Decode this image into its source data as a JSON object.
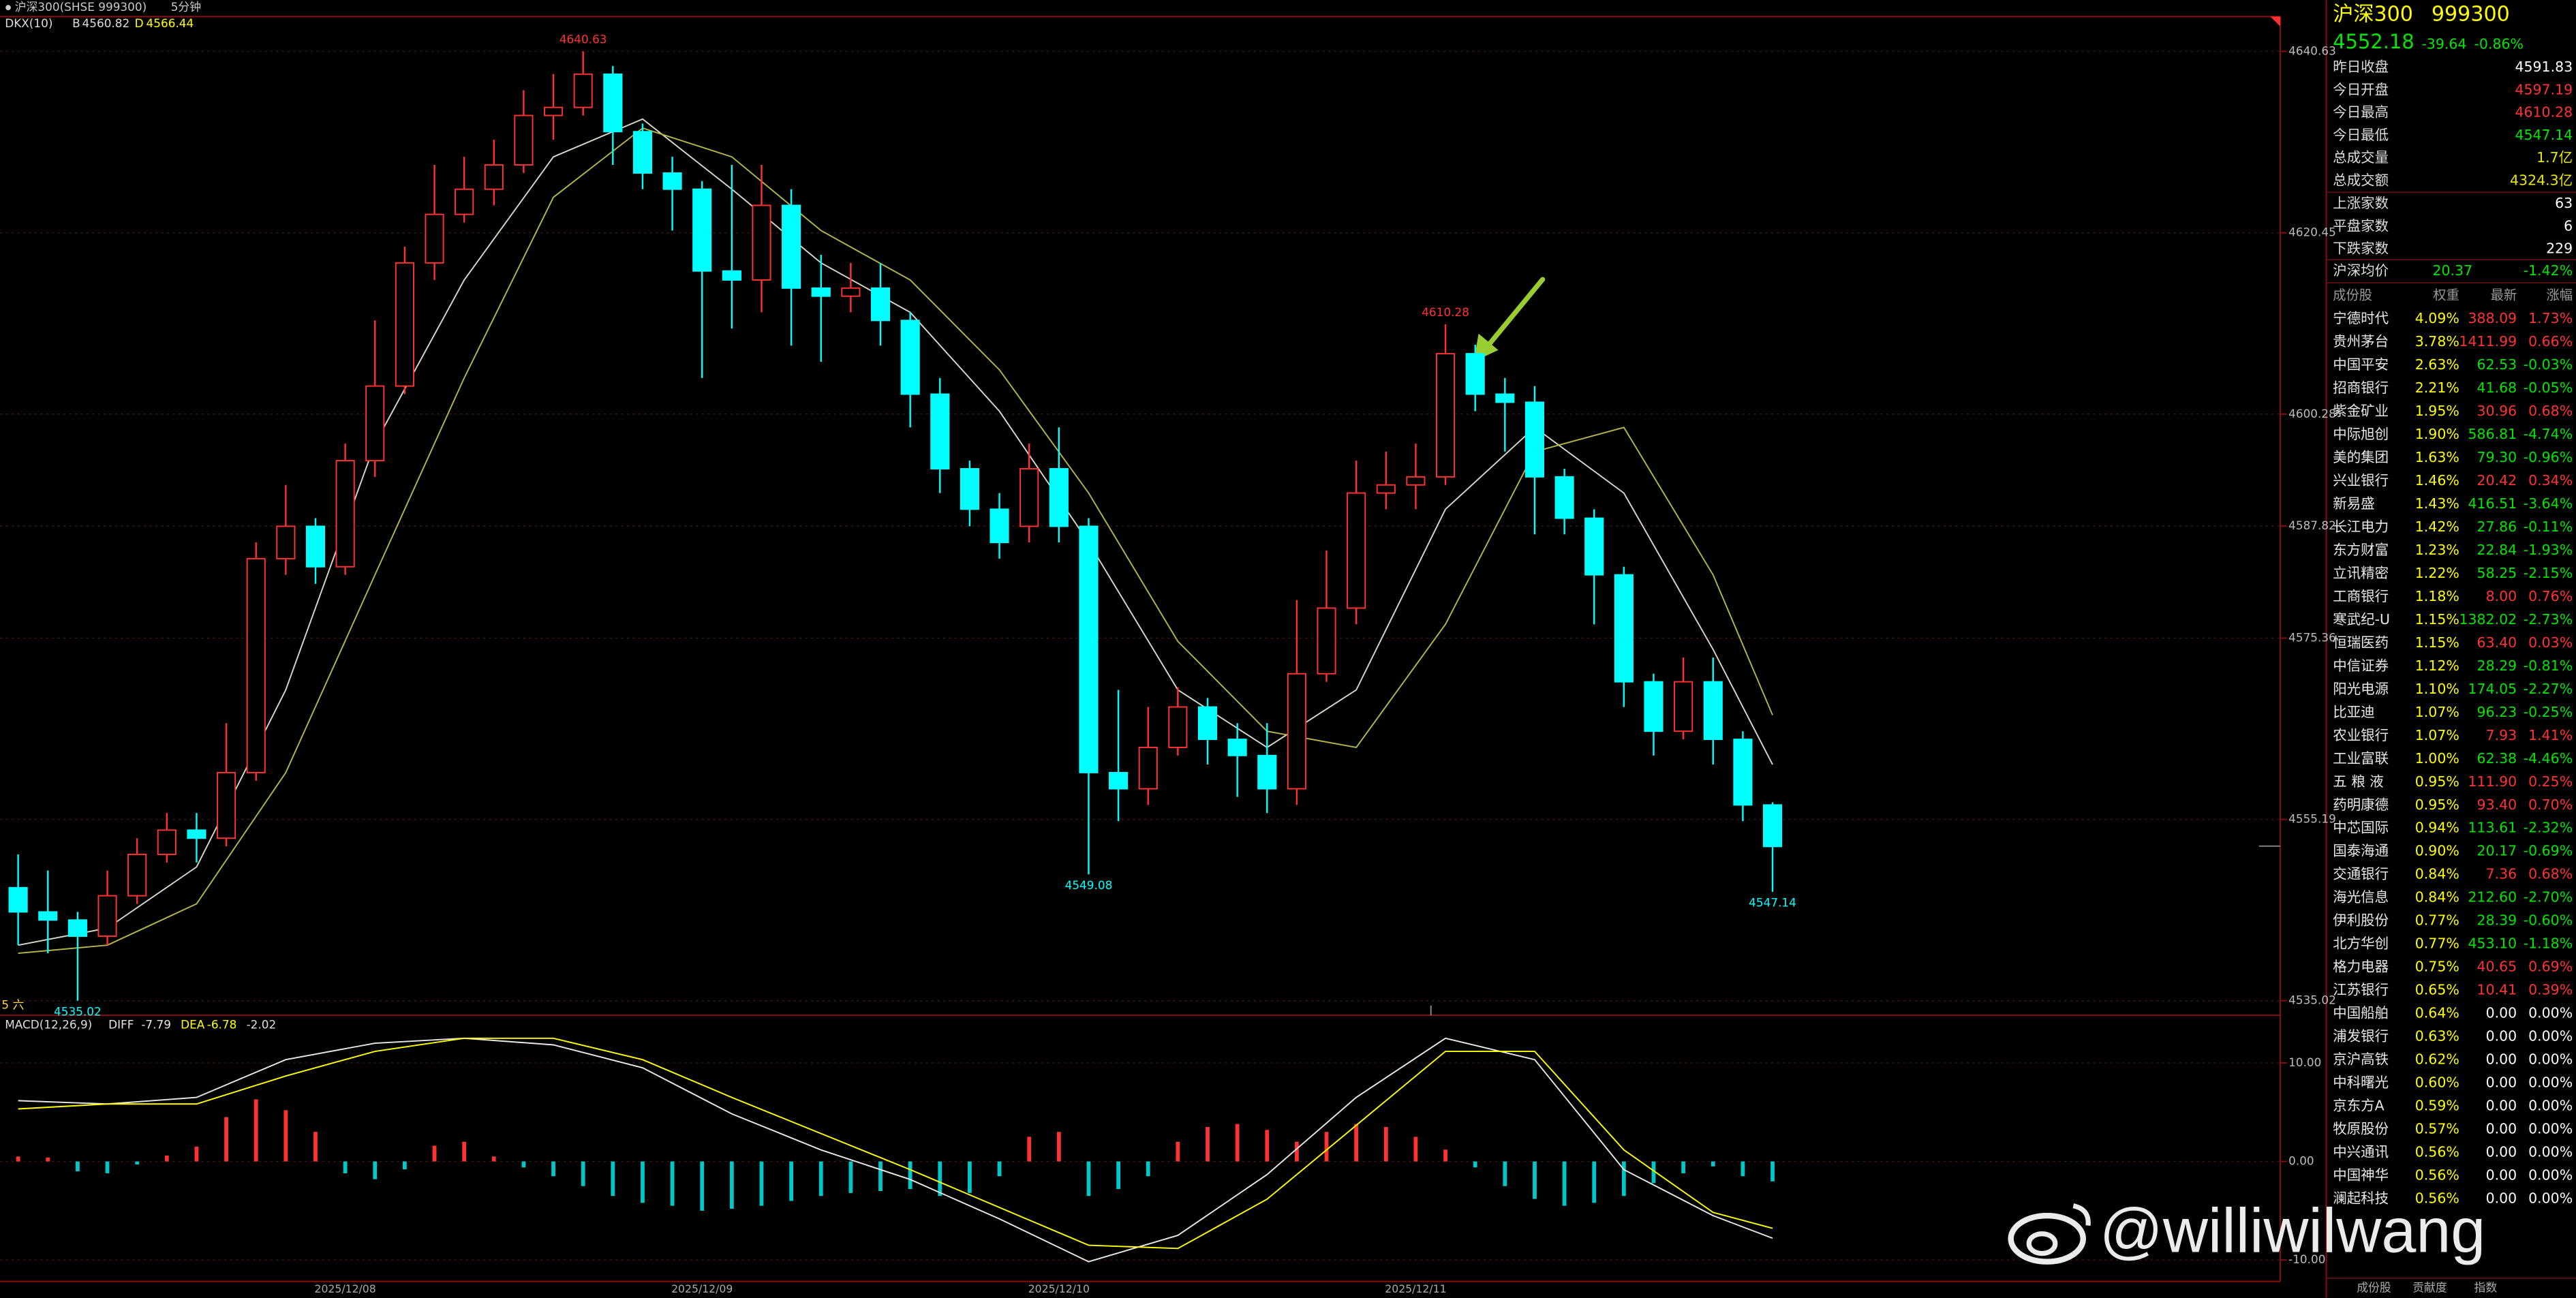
{
  "header": {
    "instrument": "沪深300(SHSE 999300)",
    "period": "5分钟",
    "indicator": "DKX(10)",
    "b_label": "B",
    "b": 4560.82,
    "d_label": "D",
    "d": 4566.44
  },
  "chart_data": [
    {
      "type": "candlestick",
      "corner_label": "5 六",
      "ylim": [
        4533.4,
        4644.5
      ],
      "yticks": [
        4640.63,
        4620.45,
        4600.28,
        4587.82,
        4575.36,
        4555.19,
        4535.02
      ],
      "grid": true,
      "up_color": "#ff3232",
      "down_color": "#00ffff",
      "candles": [
        [
          4547.6,
          4551.3,
          4541.2,
          4544.9
        ],
        [
          4544.9,
          4549.5,
          4540.3,
          4544.0
        ],
        [
          4544.0,
          4544.9,
          4535.02,
          4542.2
        ],
        [
          4542.2,
          4549.5,
          4541.2,
          4546.7
        ],
        [
          4546.7,
          4553.1,
          4545.8,
          4551.3
        ],
        [
          4551.3,
          4555.9,
          4550.4,
          4554.0
        ],
        [
          4554.0,
          4555.9,
          4550.4,
          4553.1
        ],
        [
          4553.1,
          4565.9,
          4552.2,
          4560.4
        ],
        [
          4560.4,
          4586.0,
          4559.5,
          4584.2
        ],
        [
          4584.2,
          4592.4,
          4582.4,
          4587.8
        ],
        [
          4587.8,
          4588.7,
          4581.4,
          4583.3
        ],
        [
          4583.3,
          4597.0,
          4582.4,
          4595.1
        ],
        [
          4595.1,
          4610.7,
          4593.3,
          4603.4
        ],
        [
          4603.4,
          4618.9,
          4602.5,
          4617.1
        ],
        [
          4617.1,
          4628.0,
          4615.2,
          4622.5
        ],
        [
          4622.5,
          4628.9,
          4621.6,
          4625.3
        ],
        [
          4625.3,
          4630.8,
          4623.5,
          4628.0
        ],
        [
          4628.0,
          4636.3,
          4627.1,
          4633.5
        ],
        [
          4633.5,
          4638.1,
          4630.8,
          4634.4
        ],
        [
          4634.4,
          4640.63,
          4633.5,
          4638.1
        ],
        [
          4638.1,
          4639.0,
          4628.0,
          4631.7
        ],
        [
          4631.7,
          4632.6,
          4625.3,
          4627.1
        ],
        [
          4627.1,
          4628.9,
          4620.7,
          4625.3
        ],
        [
          4625.3,
          4626.2,
          4604.3,
          4616.2
        ],
        [
          4616.2,
          4628.0,
          4609.8,
          4615.2
        ],
        [
          4615.2,
          4628.0,
          4611.6,
          4623.5
        ],
        [
          4623.5,
          4625.3,
          4607.9,
          4614.3
        ],
        [
          4614.3,
          4618.0,
          4606.1,
          4613.4
        ],
        [
          4613.4,
          4617.1,
          4611.6,
          4614.3
        ],
        [
          4614.3,
          4617.1,
          4607.9,
          4610.7
        ],
        [
          4610.7,
          4611.6,
          4598.8,
          4602.5
        ],
        [
          4602.5,
          4604.3,
          4591.5,
          4594.2
        ],
        [
          4594.2,
          4595.1,
          4587.8,
          4589.7
        ],
        [
          4589.7,
          4591.5,
          4584.2,
          4586.0
        ],
        [
          4587.8,
          4597.0,
          4586.0,
          4594.2
        ],
        [
          4594.2,
          4598.8,
          4586.0,
          4587.8
        ],
        [
          4587.8,
          4588.7,
          4549.08,
          4560.4
        ],
        [
          4560.4,
          4569.6,
          4555.0,
          4558.6
        ],
        [
          4558.6,
          4567.7,
          4556.8,
          4563.2
        ],
        [
          4563.2,
          4569.9,
          4562.3,
          4567.7
        ],
        [
          4567.7,
          4568.7,
          4561.3,
          4564.1
        ],
        [
          4564.1,
          4565.9,
          4557.7,
          4562.3
        ],
        [
          4562.3,
          4565.9,
          4555.9,
          4558.6
        ],
        [
          4558.6,
          4579.6,
          4556.8,
          4571.4
        ],
        [
          4571.4,
          4585.1,
          4570.5,
          4578.7
        ],
        [
          4578.7,
          4595.1,
          4576.9,
          4591.5
        ],
        [
          4591.5,
          4596.1,
          4589.7,
          4592.4
        ],
        [
          4592.4,
          4597.0,
          4589.7,
          4593.3
        ],
        [
          4593.3,
          4610.28,
          4592.4,
          4607.0
        ],
        [
          4607.0,
          4608.0,
          4600.6,
          4602.5
        ],
        [
          4602.5,
          4604.3,
          4596.1,
          4601.6
        ],
        [
          4601.6,
          4603.4,
          4586.9,
          4593.3
        ],
        [
          4593.3,
          4594.2,
          4586.9,
          4588.7
        ],
        [
          4588.7,
          4589.7,
          4576.9,
          4582.4
        ],
        [
          4582.4,
          4583.3,
          4567.7,
          4570.5
        ],
        [
          4570.5,
          4571.4,
          4562.3,
          4565.0
        ],
        [
          4565.0,
          4573.2,
          4564.1,
          4570.5
        ],
        [
          4570.5,
          4573.2,
          4561.3,
          4564.1
        ],
        [
          4564.1,
          4565.0,
          4555.0,
          4556.8
        ],
        [
          4556.8,
          4557.1,
          4547.14,
          4552.18
        ]
      ],
      "lines": [
        {
          "color": "#d8d8c8",
          "x": [
            0,
            3,
            6,
            9,
            12,
            15,
            18,
            21,
            24,
            27,
            30,
            33,
            36,
            39,
            42,
            45,
            48,
            51,
            54,
            57,
            59
          ],
          "values": [
            4541.2,
            4543.1,
            4549.9,
            4569.6,
            4597.0,
            4615.2,
            4628.9,
            4633.1,
            4625.3,
            4617.1,
            4611.6,
            4600.6,
            4586.0,
            4569.6,
            4563.2,
            4569.6,
            4589.7,
            4598.8,
            4591.5,
            4574.1,
            4561.3
          ]
        },
        {
          "color": "#b5b54a",
          "x": [
            0,
            3,
            6,
            9,
            12,
            15,
            18,
            21,
            24,
            27,
            30,
            33,
            36,
            39,
            42,
            45,
            48,
            51,
            54,
            57,
            59
          ],
          "values": [
            4540.3,
            4541.2,
            4545.8,
            4560.4,
            4582.4,
            4604.3,
            4624.4,
            4632.1,
            4628.9,
            4620.7,
            4615.2,
            4605.2,
            4591.5,
            4575.0,
            4565.0,
            4563.2,
            4576.9,
            4596.1,
            4598.8,
            4582.4,
            4566.8
          ]
        }
      ],
      "annotations": [
        4640.63,
        4610.28,
        4549.08,
        4547.14,
        4535.02
      ]
    },
    {
      "type": "macd",
      "title": "MACD(12,26,9)",
      "ylim": [
        -12.17,
        14.83
      ],
      "yticks": [
        {
          "value": 10,
          "label": "10.00"
        },
        {
          "value": 0,
          "label": "0.00"
        },
        {
          "value": -10,
          "label": "-10.00"
        }
      ],
      "categories": [
        null,
        null,
        null,
        null,
        null,
        null,
        null,
        null,
        null,
        null,
        null,
        "2025/12/08",
        null,
        null,
        null,
        null,
        null,
        null,
        null,
        null,
        null,
        null,
        null,
        "2025/12/09",
        null,
        null,
        null,
        null,
        null,
        null,
        null,
        null,
        null,
        null,
        null,
        "2025/12/10",
        null,
        null,
        null,
        null,
        null,
        null,
        null,
        null,
        null,
        null,
        null,
        "2025/12/11",
        null,
        null,
        null,
        null,
        null,
        null,
        null,
        null,
        null,
        null,
        null,
        null
      ],
      "x": [
        0,
        3,
        6,
        9,
        12,
        15,
        18,
        21,
        24,
        27,
        30,
        33,
        36,
        39,
        42,
        45,
        48,
        51,
        54,
        57,
        59
      ],
      "series": [
        {
          "name": "DIFF",
          "color": "#e8e8e8",
          "values": [
            6.17,
            5.83,
            6.5,
            10.33,
            12.0,
            12.5,
            11.83,
            9.5,
            4.83,
            1.17,
            -1.83,
            -5.83,
            -10.17,
            -7.5,
            -1.33,
            6.5,
            12.5,
            10.33,
            -0.83,
            -5.5,
            -7.79
          ]
        },
        {
          "name": "DEA",
          "color": "#ffff00",
          "values": [
            5.33,
            5.83,
            5.83,
            8.67,
            11.17,
            12.5,
            12.5,
            10.33,
            6.5,
            2.83,
            -0.83,
            -4.67,
            -8.5,
            -8.83,
            -3.83,
            3.67,
            11.17,
            11.17,
            1.17,
            -5.17,
            -6.78
          ]
        }
      ],
      "histogram": {
        "up_color": "#ff3232",
        "down_color": "#00c8c8",
        "values": [
          0.5,
          0.4,
          -1.0,
          -1.2,
          -0.3,
          0.6,
          1.5,
          4.5,
          6.3,
          5.2,
          3.0,
          -1.2,
          -1.8,
          -0.8,
          1.6,
          2.0,
          0.5,
          -0.6,
          -1.5,
          -2.5,
          -3.5,
          -4.2,
          -4.5,
          -5.0,
          -4.8,
          -4.5,
          -4.0,
          -3.5,
          -3.2,
          -3.0,
          -2.8,
          -3.5,
          -3.2,
          -1.5,
          2.5,
          3.0,
          -3.5,
          -2.8,
          -1.5,
          2.0,
          3.5,
          3.8,
          3.2,
          2.0,
          3.0,
          3.8,
          3.5,
          2.5,
          1.2,
          -0.6,
          -2.5,
          -3.8,
          -4.5,
          -4.2,
          -3.5,
          -2.2,
          -1.2,
          -0.5,
          -1.5,
          -2.02
        ]
      }
    }
  ],
  "quote": {
    "name": "沪深300",
    "code": "999300",
    "price": 4552.18,
    "change": -39.64,
    "change_pct": "-0.86%"
  },
  "stats": [
    {
      "label": "昨日收盘",
      "value": 4591.83,
      "color": "#ffffff"
    },
    {
      "label": "今日开盘",
      "value": 4597.19,
      "color": "#ff3232"
    },
    {
      "label": "今日最高",
      "value": 4610.28,
      "color": "#ff3232"
    },
    {
      "label": "今日最低",
      "value": 4547.14,
      "color": "#00e600"
    },
    {
      "label": "总成交量",
      "value": "1.7亿",
      "color": "#e6e600"
    },
    {
      "label": "总成交额",
      "value": "4324.3亿",
      "color": "#e6e600"
    }
  ],
  "breadth": [
    {
      "label": "上涨家数",
      "value": 63,
      "color": "#ffffff"
    },
    {
      "label": "平盘家数",
      "value": 6,
      "color": "#ffffff"
    },
    {
      "label": "下跌家数",
      "value": 229,
      "color": "#ffffff"
    }
  ],
  "average": {
    "label": "沪深均价",
    "value": 20.37,
    "change": "-1.42%",
    "color": "#00e600"
  },
  "constituents": {
    "up_color": "#ff3232",
    "down_color": "#00e600",
    "flat_color": "#ffffff",
    "weight_color": "#ffff00",
    "headers": [
      "成份股",
      "权重",
      "最新",
      "涨幅"
    ],
    "rows": [
      [
        "宁德时代",
        "4.09%",
        "388.09",
        "1.73%"
      ],
      [
        "贵州茅台",
        "3.78%",
        "1411.99",
        "0.66%"
      ],
      [
        "中国平安",
        "2.63%",
        "62.53",
        "-0.03%"
      ],
      [
        "招商银行",
        "2.21%",
        "41.68",
        "-0.05%"
      ],
      [
        "紫金矿业",
        "1.95%",
        "30.96",
        "0.68%"
      ],
      [
        "中际旭创",
        "1.90%",
        "586.81",
        "-4.74%"
      ],
      [
        "美的集团",
        "1.63%",
        "79.30",
        "-0.96%"
      ],
      [
        "兴业银行",
        "1.46%",
        "20.42",
        "0.34%"
      ],
      [
        "新易盛",
        "1.43%",
        "416.51",
        "-3.64%"
      ],
      [
        "长江电力",
        "1.42%",
        "27.86",
        "-0.11%"
      ],
      [
        "东方财富",
        "1.23%",
        "22.84",
        "-1.93%"
      ],
      [
        "立讯精密",
        "1.22%",
        "58.25",
        "-2.15%"
      ],
      [
        "工商银行",
        "1.18%",
        "8.00",
        "0.76%"
      ],
      [
        "寒武纪-U",
        "1.15%",
        "1382.02",
        "-2.73%"
      ],
      [
        "恒瑞医药",
        "1.15%",
        "63.40",
        "0.03%"
      ],
      [
        "中信证券",
        "1.12%",
        "28.29",
        "-0.81%"
      ],
      [
        "阳光电源",
        "1.10%",
        "174.05",
        "-2.27%"
      ],
      [
        "比亚迪",
        "1.07%",
        "96.23",
        "-0.25%"
      ],
      [
        "农业银行",
        "1.07%",
        "7.93",
        "1.41%"
      ],
      [
        "工业富联",
        "1.00%",
        "62.38",
        "-4.46%"
      ],
      [
        "五 粮 液",
        "0.95%",
        "111.90",
        "0.25%"
      ],
      [
        "药明康德",
        "0.95%",
        "93.40",
        "0.70%"
      ],
      [
        "中芯国际",
        "0.94%",
        "113.61",
        "-2.32%"
      ],
      [
        "国泰海通",
        "0.90%",
        "20.17",
        "-0.69%"
      ],
      [
        "交通银行",
        "0.84%",
        "7.36",
        "0.68%"
      ],
      [
        "海光信息",
        "0.84%",
        "212.60",
        "-2.70%"
      ],
      [
        "伊利股份",
        "0.77%",
        "28.39",
        "-0.60%"
      ],
      [
        "北方华创",
        "0.77%",
        "453.10",
        "-1.18%"
      ],
      [
        "格力电器",
        "0.75%",
        "40.65",
        "0.69%"
      ],
      [
        "江苏银行",
        "0.65%",
        "10.41",
        "0.39%"
      ],
      [
        "中国船舶",
        "0.64%",
        "0.00",
        "0.00%"
      ],
      [
        "浦发银行",
        "0.63%",
        "0.00",
        "0.00%"
      ],
      [
        "京沪高铁",
        "0.62%",
        "0.00",
        "0.00%"
      ],
      [
        "中科曙光",
        "0.60%",
        "0.00",
        "0.00%"
      ],
      [
        "京东方A",
        "0.59%",
        "0.00",
        "0.00%"
      ],
      [
        "牧原股份",
        "0.57%",
        "0.00",
        "0.00%"
      ],
      [
        "中兴通讯",
        "0.56%",
        "0.00",
        "0.00%"
      ],
      [
        "中国神华",
        "0.56%",
        "0.00",
        "0.00%"
      ],
      [
        "澜起科技",
        "0.56%",
        "0.00",
        "0.00%"
      ]
    ]
  },
  "tabs": [
    "成份股",
    "贡献度",
    "指数"
  ],
  "watermark": "@williwilwang"
}
